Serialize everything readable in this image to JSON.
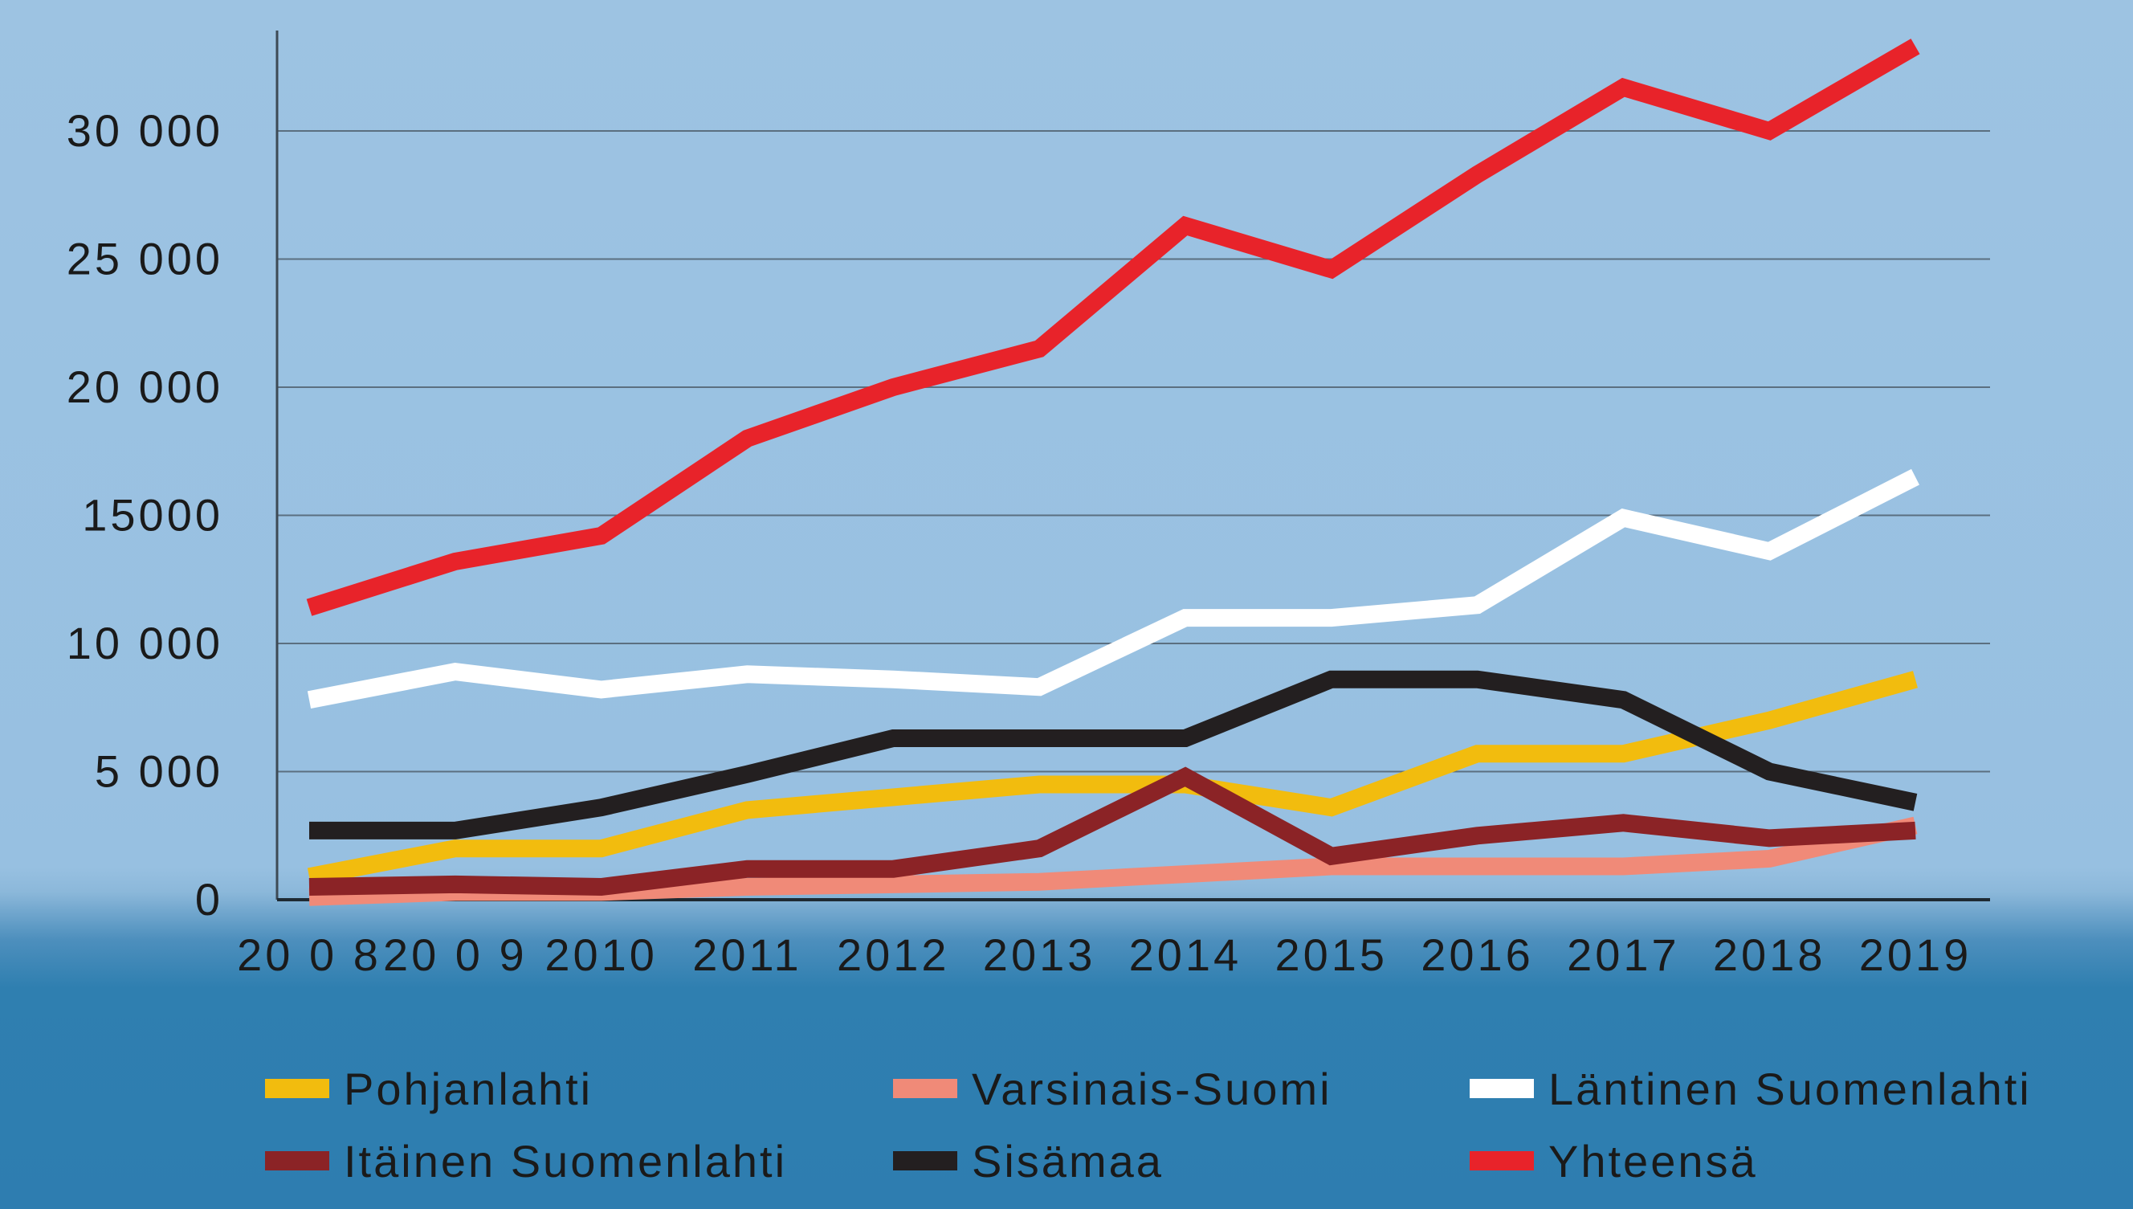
{
  "chart_data": {
    "type": "line",
    "title": "",
    "xlabel": "",
    "ylabel": "",
    "ylim": [
      0,
      34000
    ],
    "grid": true,
    "legend_position": "bottom",
    "categories": [
      "2008",
      "2009",
      "2010",
      "2011",
      "2012",
      "2013",
      "2014",
      "2015",
      "2016",
      "2017",
      "2018",
      "2019"
    ],
    "x_tick_labels": [
      "20 0 8",
      "20 0 9",
      "2010",
      "2011",
      "2012",
      "2013",
      "2014",
      "2015",
      "2016",
      "2017",
      "2018",
      "2019"
    ],
    "y_ticks": [
      0,
      5000,
      10000,
      15000,
      20000,
      25000,
      30000
    ],
    "y_tick_labels": [
      "0",
      "5 000",
      "10 000",
      "15000",
      "20 000",
      "25 000",
      "30 000"
    ],
    "series": [
      {
        "name": "Pohjanlahti",
        "color": "#f2bc0e",
        "values": [
          900,
          2000,
          2000,
          3500,
          4000,
          4500,
          4500,
          3600,
          5700,
          5700,
          7000,
          8600
        ]
      },
      {
        "name": "Varsinais-Suomi",
        "color": "#f08a78",
        "values": [
          100,
          300,
          300,
          500,
          600,
          700,
          1000,
          1300,
          1300,
          1300,
          1600,
          2900
        ]
      },
      {
        "name": "Läntinen Suomenlahti",
        "color": "#ffffff",
        "values": [
          7800,
          8900,
          8200,
          8800,
          8600,
          8300,
          11000,
          11000,
          11500,
          14900,
          13600,
          16500
        ]
      },
      {
        "name": "Itäinen Suomenlahti",
        "color": "#8b2326",
        "values": [
          500,
          600,
          500,
          1200,
          1200,
          2000,
          4800,
          1700,
          2500,
          3000,
          2400,
          2700
        ]
      },
      {
        "name": "Sisämaa",
        "color": "#231f20",
        "values": [
          2700,
          2700,
          3600,
          4900,
          6300,
          6300,
          6300,
          8600,
          8600,
          7800,
          5000,
          3800
        ]
      },
      {
        "name": "Yhteensä",
        "color": "#e8232a",
        "values": [
          11400,
          13200,
          14200,
          18000,
          20000,
          21500,
          26300,
          24600,
          28300,
          31700,
          30000,
          33300
        ]
      }
    ]
  }
}
